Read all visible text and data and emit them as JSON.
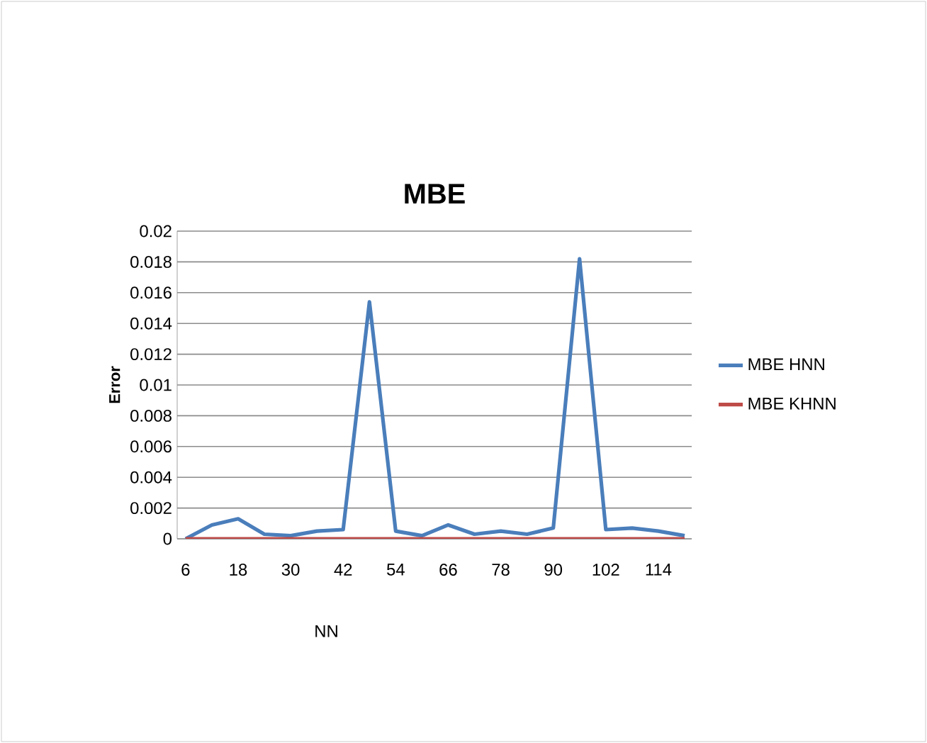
{
  "chart_data": {
    "type": "line",
    "title": "MBE",
    "xlabel": "NN",
    "ylabel": "Error",
    "categories": [
      "6",
      null,
      "18",
      null,
      "30",
      null,
      "42",
      null,
      "54",
      null,
      "66",
      null,
      "78",
      null,
      "90",
      null,
      "102",
      null,
      "114",
      null
    ],
    "series": [
      {
        "name": "MBE HNN",
        "color": "#4a7ebb",
        "values": [
          0,
          0.0009,
          0.0013,
          0.0003,
          0.0002,
          0.0005,
          0.0006,
          0.0154,
          0.0005,
          0.0002,
          0.0009,
          0.0003,
          0.0005,
          0.0003,
          0.0007,
          0.0182,
          0.0006,
          0.0007,
          0.0005,
          0.0002
        ]
      },
      {
        "name": "MBE KHNN",
        "color": "#be4b48",
        "values": [
          0,
          0,
          0,
          0,
          0,
          0,
          0,
          0,
          0,
          0,
          0,
          0,
          0,
          0,
          0,
          0,
          0,
          0,
          0,
          0
        ]
      }
    ],
    "ylim": [
      0,
      0.02
    ],
    "yticks": [
      0,
      0.002,
      0.004,
      0.006,
      0.008,
      0.01,
      0.012,
      0.014,
      0.016,
      0.018,
      0.02
    ],
    "grid": "y",
    "legend": "right",
    "marker": "none",
    "line_style": "solid"
  }
}
